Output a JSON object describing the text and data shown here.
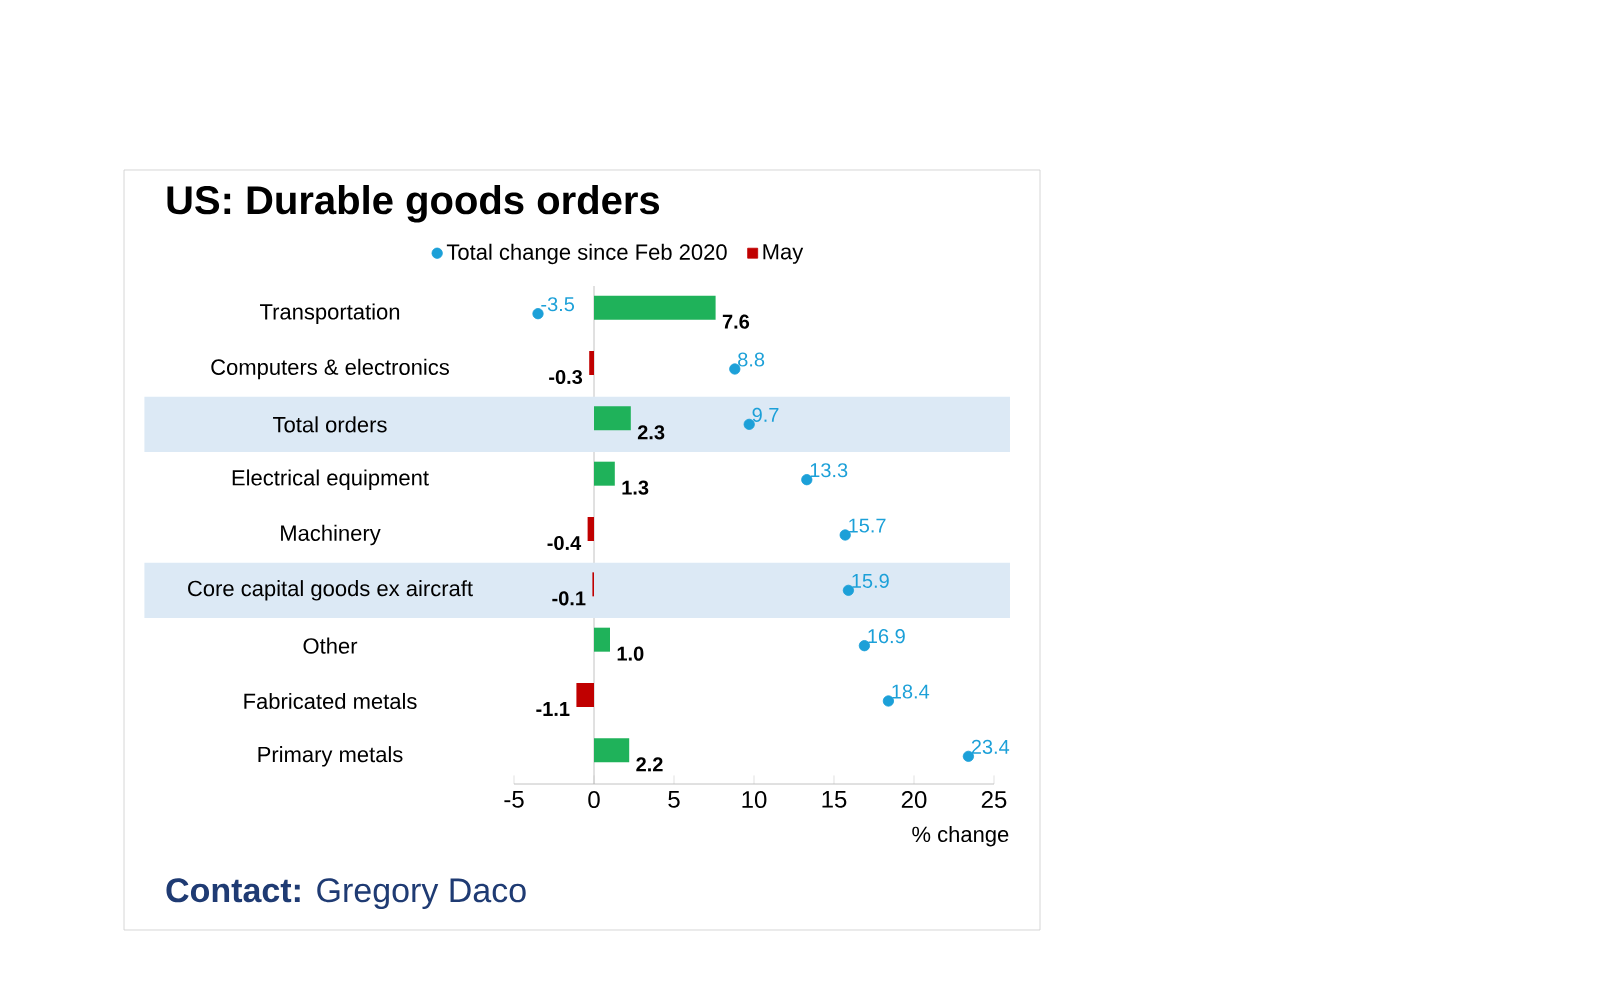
{
  "chart_data": {
    "type": "bar",
    "orientation": "horizontal",
    "title": "US: Durable goods orders",
    "xlabel": "% change",
    "categories": [
      "Transportation",
      "Computers & electronics",
      "Total orders",
      "Electrical equipment",
      "Machinery",
      "Core capital goods ex aircraft",
      "Other",
      "Fabricated metals",
      "Primary metals"
    ],
    "series": [
      {
        "name": "Total change since Feb 2020",
        "type": "scatter",
        "color": "#1ca0d8",
        "values": [
          -3.5,
          8.8,
          9.7,
          13.3,
          15.7,
          15.9,
          16.9,
          18.4,
          23.4
        ],
        "value_labels": [
          "-3.5",
          "8.8",
          "9.7",
          "13.3",
          "15.7",
          "15.9",
          "16.9",
          "18.4",
          "23.4"
        ]
      },
      {
        "name": "May",
        "color": "#c00000",
        "colors": [
          "#1fb25a",
          "#c00000",
          "#1fb25a",
          "#1fb25a",
          "#c00000",
          "#c00000",
          "#1fb25a",
          "#c00000",
          "#1fb25a"
        ],
        "values": [
          7.6,
          -0.3,
          2.3,
          1.3,
          -0.4,
          -0.1,
          1.0,
          -1.1,
          2.2
        ],
        "value_labels": [
          "7.6",
          "-0.3",
          "2.3",
          "1.3",
          "-0.4",
          "-0.1",
          "1.0",
          "-1.1",
          "2.2"
        ]
      }
    ],
    "xlim": [
      -5,
      25
    ],
    "xticks": [
      -5,
      0,
      5,
      10,
      15,
      20,
      25
    ],
    "bands": [
      {
        "axis": "y",
        "from": "Total orders",
        "to": "Total orders",
        "color": "#dce9f5"
      },
      {
        "axis": "y",
        "from": "Core capital goods ex aircraft",
        "to": "Core capital goods ex aircraft",
        "color": "#dce9f5"
      }
    ],
    "legend": "top",
    "annotations": [
      "**Contact:** Gregory Daco"
    ]
  }
}
